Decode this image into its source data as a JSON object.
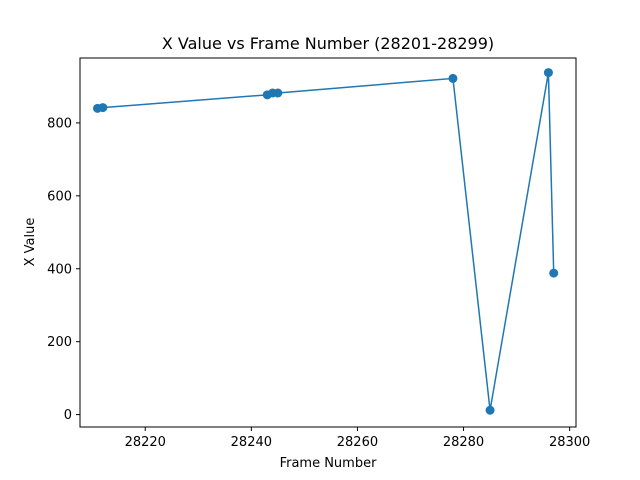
{
  "chart_data": {
    "type": "line",
    "title": "X Value vs Frame Number (28201-28299)",
    "xlabel": "Frame Number",
    "ylabel": "X Value",
    "xlim": [
      28207.7,
      28301.2
    ],
    "ylim": [
      -34,
      978
    ],
    "xticks": [
      28220,
      28240,
      28260,
      28280,
      28300
    ],
    "yticks": [
      0,
      200,
      400,
      600,
      800
    ],
    "grid": false,
    "legend": "none",
    "color": "#1f77b4",
    "marker": "circle",
    "series": [
      {
        "x": [
          28211,
          28212,
          28243,
          28244,
          28245,
          28278,
          28285,
          28296,
          28297
        ],
        "y": [
          840,
          842,
          877,
          882,
          882,
          922,
          12,
          938,
          388
        ]
      }
    ]
  }
}
